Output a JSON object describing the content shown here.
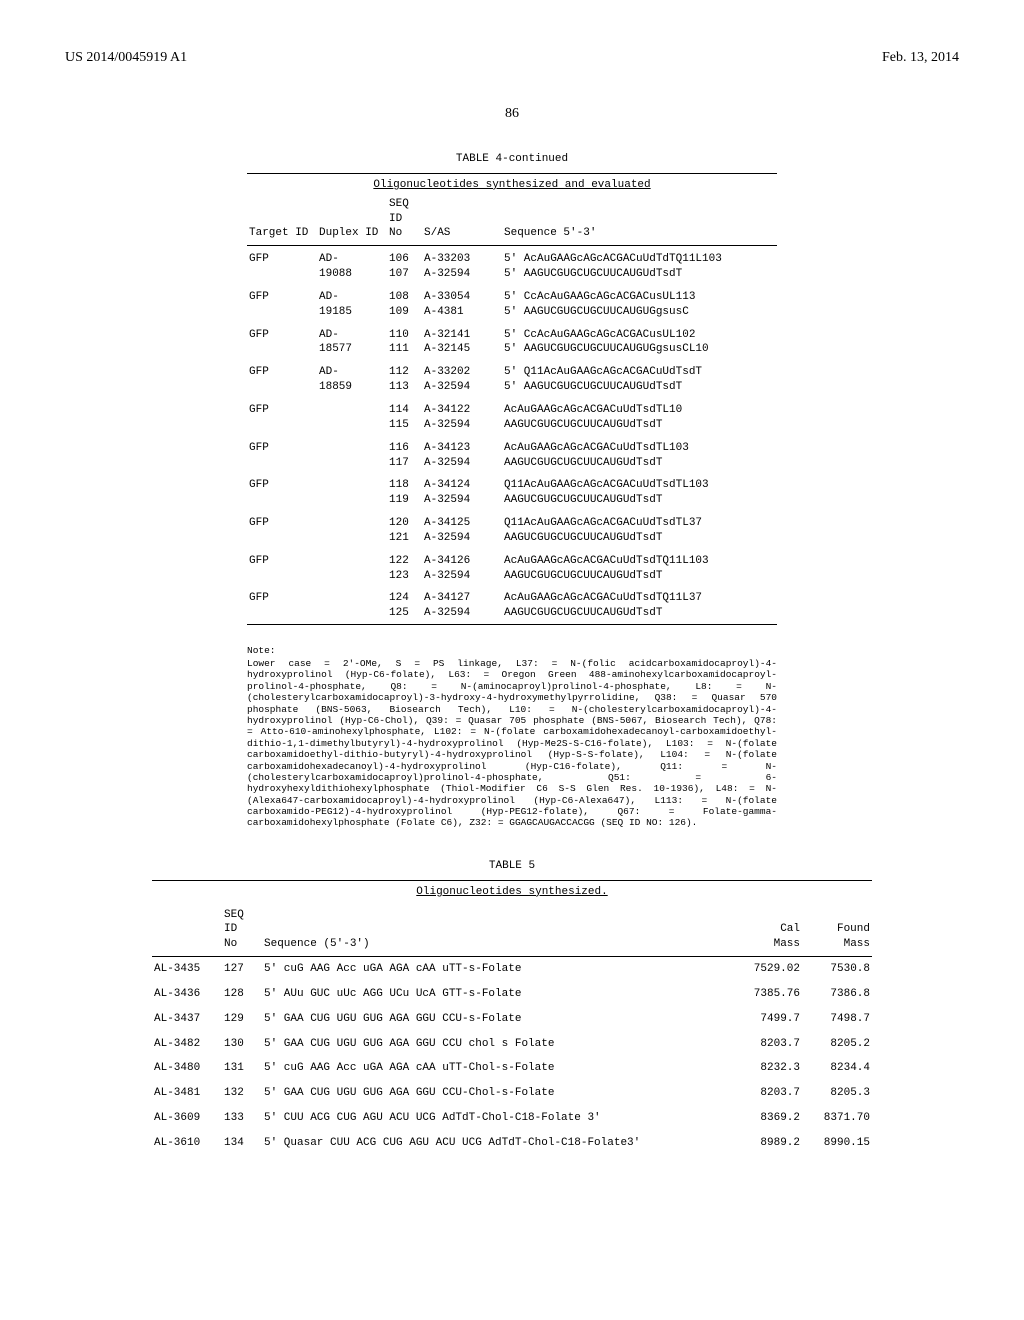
{
  "header": {
    "left": "US 2014/0045919 A1",
    "right": "Feb. 13, 2014"
  },
  "page_number": "86",
  "table4": {
    "title": "TABLE 4-continued",
    "subtitle": "Oligonucleotides synthesized and evaluated",
    "headers": {
      "target": "Target ID",
      "duplex": "Duplex ID",
      "seq": "SEQ\nID\nNo",
      "sas": "S/AS",
      "sequence": "Sequence 5'-3'"
    },
    "rows": [
      {
        "t": "GFP",
        "d": "AD-19088",
        "s1": "106",
        "s2": "107",
        "a1": "A-33203",
        "a2": "A-32594",
        "q1": "5' AcAuGAAGcAGcACGACuUdTdTQ11L103",
        "q2": "5' AAGUCGUGCUGCUUCAUGUdTsdT"
      },
      {
        "t": "GFP",
        "d": "AD-19185",
        "s1": "108",
        "s2": "109",
        "a1": "A-33054",
        "a2": "A-4381",
        "q1": "5' CcAcAuGAAGcAGcACGACusUL113",
        "q2": "5' AAGUCGUGCUGCUUCAUGUGgsusC"
      },
      {
        "t": "GFP",
        "d": "AD-18577",
        "s1": "110",
        "s2": "111",
        "a1": "A-32141",
        "a2": "A-32145",
        "q1": "5' CcAcAuGAAGcAGcACGACusUL102",
        "q2": "5' AAGUCGUGCUGCUUCAUGUGgsusCL10"
      },
      {
        "t": "GFP",
        "d": "AD-18859",
        "s1": "112",
        "s2": "113",
        "a1": "A-33202",
        "a2": "A-32594",
        "q1": "5' Q11AcAuGAAGcAGcACGACuUdTsdT",
        "q2": "5' AAGUCGUGCUGCUUCAUGUdTsdT"
      },
      {
        "t": "GFP",
        "d": "",
        "s1": "114",
        "s2": "115",
        "a1": "A-34122",
        "a2": "A-32594",
        "q1": "AcAuGAAGcAGcACGACuUdTsdTL10",
        "q2": "AAGUCGUGCUGCUUCAUGUdTsdT"
      },
      {
        "t": "GFP",
        "d": "",
        "s1": "116",
        "s2": "117",
        "a1": "A-34123",
        "a2": "A-32594",
        "q1": "AcAuGAAGcAGcACGACuUdTsdTL103",
        "q2": "AAGUCGUGCUGCUUCAUGUdTsdT"
      },
      {
        "t": "GFP",
        "d": "",
        "s1": "118",
        "s2": "119",
        "a1": "A-34124",
        "a2": "A-32594",
        "q1": "Q11AcAuGAAGcAGcACGACuUdTsdTL103",
        "q2": "AAGUCGUGCUGCUUCAUGUdTsdT"
      },
      {
        "t": "GFP",
        "d": "",
        "s1": "120",
        "s2": "121",
        "a1": "A-34125",
        "a2": "A-32594",
        "q1": "Q11AcAuGAAGcAGcACGACuUdTsdTL37",
        "q2": "AAGUCGUGCUGCUUCAUGUdTsdT"
      },
      {
        "t": "GFP",
        "d": "",
        "s1": "122",
        "s2": "123",
        "a1": "A-34126",
        "a2": "A-32594",
        "q1": "AcAuGAAGcAGcACGACuUdTsdTQ11L103",
        "q2": "AAGUCGUGCUGCUUCAUGUdTsdT"
      },
      {
        "t": "GFP",
        "d": "",
        "s1": "124",
        "s2": "125",
        "a1": "A-34127",
        "a2": "A-32594",
        "q1": "AcAuGAAGcAGcACGACuUdTsdTQ11L37",
        "q2": "AAGUCGUGCUGCUUCAUGUdTsdT"
      }
    ]
  },
  "note": {
    "head": "Note:",
    "body": "Lower case = 2'-OMe, S = PS linkage, L37: = N-(folic acidcarboxamidocaproyl)-4-hydroxyprolinol (Hyp-C6-folate), L63: = Oregon Green 488-aminohexylcarboxamidocaproyl-prolinol-4-phosphate, Q8: = N-(aminocaproyl)prolinol-4-phosphate, L8: = N-(cholesterylcarboxamidocaproyl)-3-hydroxy-4-hydroxymethylpyrrolidine, Q38: = Quasar 570 phosphate (BNS-5063, Biosearch Tech), L10: = N-(cholesterylcarboxamidocaproyl)-4-hydroxyprolinol (Hyp-C6-Chol), Q39: = Quasar 705 phosphate (BNS-5067, Biosearch Tech), Q78: = Atto-610-aminohexylphosphate, L102: = N-(folate carboxamidohexadecanoyl-carboxamidoethyl-dithio-1,1-dimethylbutyryl)-4-hydroxyprolinol (Hyp-Me2S-S-C16-folate), L103: = N-(folate carboxamidoethyl-dithio-butyryl)-4-hydroxyprolinol (Hyp-S-S-folate), L104: = N-(folate carboxamidohexadecanoyl)-4-hydroxyprolinol (Hyp-C16-folate), Q11: = N-(cholesterylcarboxamidocaproyl)prolinol-4-phosphate, Q51: = 6-hydroxyhexyldithiohexylphosphate (Thiol-Modifier C6 S-S Glen Res. 10-1936), L48: = N-(Alexa647-carboxamidocaproyl)-4-hydroxyprolinol (Hyp-C6-Alexa647), L113: = N-(folate carboxamido-PEG12)-4-hydroxyprolinol (Hyp-PEG12-folate), Q67: = Folate-gamma-carboxamidohexylphosphate (Folate C6), Z32: = GGAGCAUGACCACGG (SEQ ID NO: 126)."
  },
  "table5": {
    "title": "TABLE 5",
    "subtitle": "Oligonucleotides synthesized.",
    "headers": {
      "id": "",
      "seq": "SEQ\nID\nNo",
      "sequence": "Sequence (5'-3')",
      "cal": "Cal\nMass",
      "found": "Found\nMass"
    },
    "rows": [
      {
        "id": "AL-3435",
        "seq": "127",
        "s": "5' cuG AAG Acc uGA AGA cAA uTT-s-Folate",
        "cal": "7529.02",
        "found": "7530.8"
      },
      {
        "id": "AL-3436",
        "seq": "128",
        "s": "5' AUu GUC uUc AGG UCu UcA GTT-s-Folate",
        "cal": "7385.76",
        "found": "7386.8"
      },
      {
        "id": "AL-3437",
        "seq": "129",
        "s": "5' GAA CUG UGU GUG AGA GGU CCU-s-Folate",
        "cal": "7499.7",
        "found": "7498.7"
      },
      {
        "id": "AL-3482",
        "seq": "130",
        "s": "5' GAA CUG UGU GUG AGA GGU CCU chol s Folate",
        "cal": "8203.7",
        "found": "8205.2"
      },
      {
        "id": "AL-3480",
        "seq": "131",
        "s": "5' cuG AAG Acc uGA AGA cAA uTT-Chol-s-Folate",
        "cal": "8232.3",
        "found": "8234.4"
      },
      {
        "id": "AL-3481",
        "seq": "132",
        "s": "5' GAA CUG UGU GUG AGA GGU CCU-Chol-s-Folate",
        "cal": "8203.7",
        "found": "8205.3"
      },
      {
        "id": "AL-3609",
        "seq": "133",
        "s": "5' CUU ACG CUG AGU ACU UCG AdTdT-Chol-C18-Folate 3'",
        "cal": "8369.2",
        "found": "8371.70"
      },
      {
        "id": "AL-3610",
        "seq": "134",
        "s": "5' Quasar CUU ACG CUG AGU ACU UCG AdTdT-Chol-C18-Folate3'",
        "cal": "8989.2",
        "found": "8990.15"
      }
    ]
  }
}
